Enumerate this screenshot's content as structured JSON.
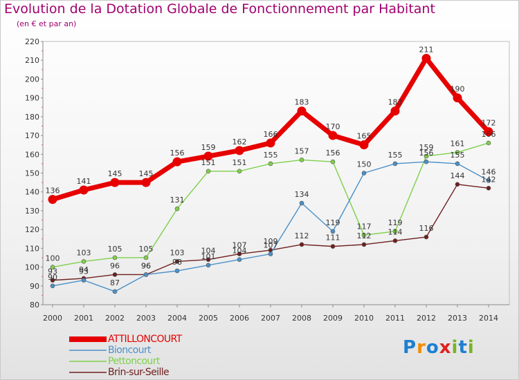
{
  "chart_data": {
    "type": "line",
    "title": "Evolution de la Dotation Globale de Fonctionnement par Habitant",
    "subtitle": "(en € et par an)",
    "xlabel": "",
    "ylabel": "",
    "ylim": [
      80,
      220
    ],
    "yticks": [
      80,
      90,
      100,
      110,
      120,
      130,
      140,
      150,
      160,
      170,
      180,
      190,
      200,
      210,
      220
    ],
    "categories": [
      "2000",
      "2001",
      "2002",
      "2003",
      "2004",
      "2005",
      "2006",
      "2007",
      "2008",
      "2009",
      "2010",
      "2011",
      "2012",
      "2013",
      "2014"
    ],
    "grid": false,
    "legend_position": "bottom-left",
    "series": [
      {
        "name": "ATTILLONCOURT",
        "color": "#e60000",
        "values": [
          136,
          141,
          145,
          145,
          156,
          159,
          162,
          166,
          183,
          170,
          165,
          183,
          211,
          190,
          172
        ]
      },
      {
        "name": "Bioncourt",
        "color": "#4a90c8",
        "values": [
          90,
          93,
          87,
          96,
          98,
          101,
          104,
          107,
          134,
          119,
          150,
          155,
          156,
          155,
          146
        ]
      },
      {
        "name": "Pettoncourt",
        "color": "#7ed04a",
        "values": [
          100,
          103,
          105,
          105,
          131,
          151,
          151,
          155,
          157,
          156,
          117,
          119,
          159,
          161,
          166
        ]
      },
      {
        "name": "Brin-sur-Seille",
        "color": "#6e1e1e",
        "values": [
          93,
          94,
          96,
          96,
          103,
          104,
          107,
          109,
          112,
          111,
          112,
          114,
          116,
          144,
          142
        ]
      }
    ]
  },
  "legend": {
    "items": [
      {
        "label": "ATTILLONCOURT",
        "color": "#e60000"
      },
      {
        "label": "Bioncourt",
        "color": "#4a90c8"
      },
      {
        "label": "Pettoncourt",
        "color": "#7ed04a"
      },
      {
        "label": "Brin-sur-Seille",
        "color": "#6e1e1e"
      }
    ]
  },
  "logo": {
    "letters": [
      "P",
      "r",
      "o",
      "x",
      "i",
      "t",
      "i"
    ],
    "colors": [
      "#1e7fd0",
      "#f08c00",
      "#1e7fd0",
      "#e02020",
      "#78b428",
      "#1e7fd0",
      "#78b428"
    ]
  }
}
